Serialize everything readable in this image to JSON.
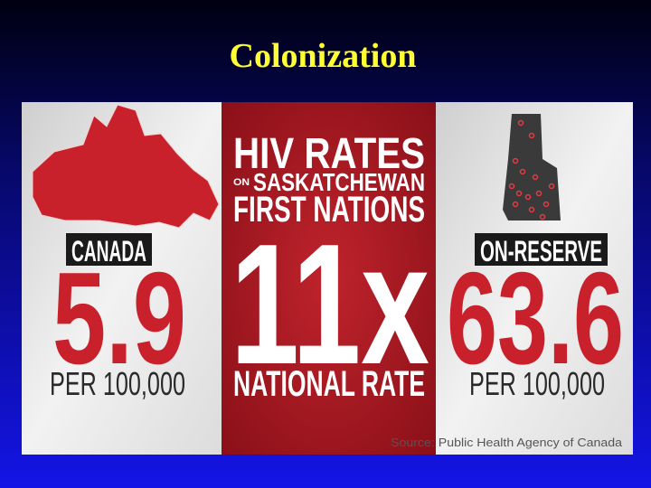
{
  "slide": {
    "title": "Colonization",
    "infographic": {
      "headline": {
        "line1": "HIV RATES",
        "on": "ON",
        "line2": "SASKATCHEWAN",
        "line3": "FIRST NATIONS"
      },
      "multiplier": "11x",
      "multiplier_caption": "NATIONAL RATE",
      "left": {
        "label": "CANADA",
        "value": "5.9",
        "unit": "PER 100,000"
      },
      "right": {
        "label": "ON-RESERVE",
        "value": "63.6",
        "unit": "PER 100,000"
      },
      "source": "Source: Public Health Agency of Canada"
    }
  }
}
